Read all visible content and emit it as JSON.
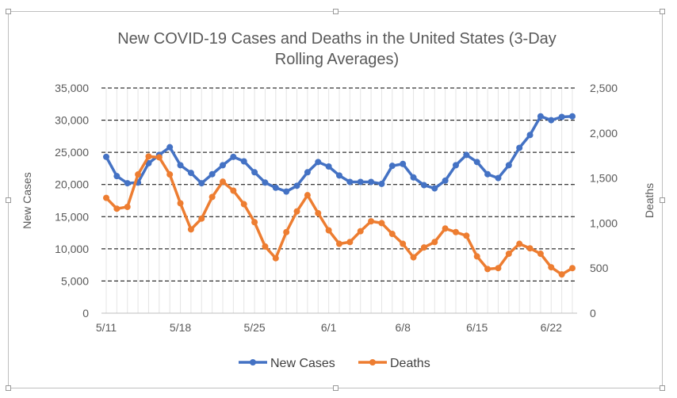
{
  "chart_data": {
    "type": "line",
    "title_lines": [
      "New COVID-19 Cases and Deaths in the United States (3-Day",
      "Rolling Averages)"
    ],
    "ylabel": "New Cases",
    "y2label": "Deaths",
    "ylim": [
      0,
      35000
    ],
    "y2lim": [
      0,
      2500
    ],
    "y_ticks": [
      "0",
      "5,000",
      "10,000",
      "15,000",
      "20,000",
      "25,000",
      "30,000",
      "35,000"
    ],
    "y2_ticks": [
      "0",
      "500",
      "1,000",
      "1,500",
      "2,000",
      "2,500"
    ],
    "x_tick_labels": [
      "5/11",
      "5/18",
      "5/25",
      "6/1",
      "6/8",
      "6/15",
      "6/22"
    ],
    "x": [
      "5/11",
      "5/12",
      "5/13",
      "5/14",
      "5/15",
      "5/16",
      "5/17",
      "5/18",
      "5/19",
      "5/20",
      "5/21",
      "5/22",
      "5/23",
      "5/24",
      "5/25",
      "5/26",
      "5/27",
      "5/28",
      "5/29",
      "5/30",
      "5/31",
      "6/1",
      "6/2",
      "6/3",
      "6/4",
      "6/5",
      "6/6",
      "6/7",
      "6/8",
      "6/9",
      "6/10",
      "6/11",
      "6/12",
      "6/13",
      "6/14",
      "6/15",
      "6/16",
      "6/17",
      "6/18",
      "6/19",
      "6/20",
      "6/21",
      "6/22",
      "6/23",
      "6/24"
    ],
    "grid": true,
    "legend_position": "bottom",
    "series": [
      {
        "name": "New Cases",
        "axis": "left",
        "color": "#4472C4",
        "values": [
          24300,
          21300,
          20200,
          20300,
          23300,
          24600,
          25800,
          23000,
          21800,
          20200,
          21600,
          23000,
          24300,
          23600,
          21900,
          20300,
          19500,
          18900,
          19800,
          21900,
          23500,
          22800,
          21400,
          20400,
          20400,
          20400,
          20100,
          22900,
          23200,
          21100,
          19900,
          19400,
          20600,
          23000,
          24600,
          23500,
          21600,
          21000,
          23000,
          25700,
          27700,
          30600,
          30000,
          30500,
          30600
        ]
      },
      {
        "name": "Deaths",
        "axis": "right",
        "color": "#ED7D31",
        "values": [
          1280,
          1160,
          1180,
          1540,
          1740,
          1730,
          1540,
          1220,
          930,
          1050,
          1290,
          1460,
          1360,
          1210,
          1010,
          740,
          610,
          900,
          1130,
          1310,
          1110,
          920,
          770,
          790,
          910,
          1020,
          1000,
          880,
          770,
          620,
          730,
          790,
          940,
          900,
          860,
          630,
          490,
          500,
          660,
          770,
          720,
          660,
          510,
          430,
          500
        ]
      }
    ]
  }
}
